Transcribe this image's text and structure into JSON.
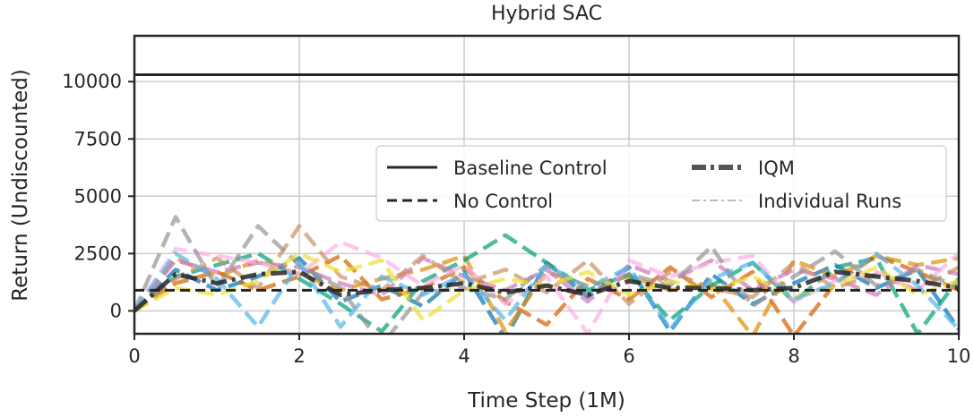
{
  "chart_data": {
    "type": "line",
    "title": "Hybrid SAC",
    "xlabel": "Time Step (1M)",
    "ylabel": "Return (Undiscounted)",
    "xlim": [
      0,
      10
    ],
    "ylim": [
      -1000,
      12000
    ],
    "xticks": [
      0,
      2,
      4,
      6,
      8,
      10
    ],
    "yticks": [
      0,
      2500,
      5000,
      7500,
      10000
    ],
    "xtick_labels": [
      "0",
      "2",
      "4",
      "6",
      "8",
      "10"
    ],
    "ytick_labels": [
      "0",
      "2500",
      "5000",
      "7500",
      "10000"
    ],
    "grid": true,
    "legend_position": "center-right",
    "legend": [
      {
        "label": "Baseline Control",
        "style": "solid",
        "color": "#262626"
      },
      {
        "label": "No Control",
        "style": "dashed",
        "color": "#262626"
      },
      {
        "label": "IQM",
        "style": "dashdot-thick",
        "color": "#555555"
      },
      {
        "label": "Individual Runs",
        "style": "dashdot-thin",
        "color": "#bbbbbb"
      }
    ],
    "baseline_control": 10300,
    "no_control": 900,
    "iqm": {
      "x": [
        0,
        0.5,
        1,
        1.5,
        2,
        2.5,
        3,
        3.5,
        4,
        4.5,
        5,
        5.5,
        6,
        6.5,
        7,
        7.5,
        8,
        8.5,
        9,
        9.5,
        10
      ],
      "y": [
        0,
        1600,
        1200,
        1600,
        1700,
        700,
        900,
        1000,
        1200,
        800,
        1100,
        700,
        1300,
        1000,
        1000,
        900,
        1000,
        1700,
        1500,
        1300,
        1000
      ]
    },
    "individual_runs": [
      {
        "color": "#0173b2",
        "x": [
          0,
          0.5,
          1,
          1.5,
          2,
          2.5,
          3,
          3.5,
          4,
          4.5,
          5,
          5.5,
          6,
          6.5,
          7,
          7.5,
          8,
          8.5,
          9,
          9.5,
          10
        ],
        "y": [
          0,
          1800,
          900,
          1500,
          2300,
          400,
          1100,
          200,
          1700,
          -1200,
          2100,
          600,
          1900,
          -900,
          1600,
          300,
          1200,
          2000,
          1000,
          1800,
          -800
        ]
      },
      {
        "color": "#de8f05",
        "x": [
          0,
          0.5,
          1,
          1.5,
          2,
          2.5,
          3,
          3.5,
          4,
          4.5,
          5,
          5.5,
          6,
          6.5,
          7,
          7.5,
          8,
          8.5,
          9,
          9.5,
          10
        ],
        "y": [
          0,
          2300,
          1500,
          2200,
          1600,
          900,
          1400,
          1800,
          2400,
          -900,
          1700,
          1100,
          1500,
          900,
          1200,
          -1100,
          2200,
          1500,
          2400,
          2000,
          2300
        ]
      },
      {
        "color": "#029e73",
        "x": [
          0,
          0.5,
          1,
          1.5,
          2,
          2.5,
          3,
          3.5,
          4,
          4.5,
          5,
          5.5,
          6,
          6.5,
          7,
          7.5,
          8,
          8.5,
          9,
          9.5,
          10
        ],
        "y": [
          0,
          1500,
          2000,
          2500,
          1400,
          300,
          -900,
          1300,
          2200,
          3300,
          2100,
          900,
          1600,
          -400,
          1100,
          2100,
          400,
          1900,
          2300,
          -1000,
          1400
        ]
      },
      {
        "color": "#d55e00",
        "x": [
          0,
          0.5,
          1,
          1.5,
          2,
          2.5,
          3,
          3.5,
          4,
          4.5,
          5,
          5.5,
          6,
          6.5,
          7,
          7.5,
          8,
          8.5,
          9,
          9.5,
          10
        ],
        "y": [
          0,
          1200,
          1700,
          900,
          1500,
          2400,
          500,
          1000,
          1900,
          400,
          -600,
          1400,
          500,
          1900,
          600,
          1700,
          -1100,
          1200,
          2400,
          1700,
          900
        ]
      },
      {
        "color": "#cc78bc",
        "x": [
          0,
          0.5,
          1,
          1.5,
          2,
          2.5,
          3,
          3.5,
          4,
          4.5,
          5,
          5.5,
          6,
          6.5,
          7,
          7.5,
          8,
          8.5,
          9,
          9.5,
          10
        ],
        "y": [
          0,
          2200,
          1700,
          2100,
          1900,
          1200,
          700,
          2300,
          1500,
          900,
          1800,
          400,
          2000,
          1300,
          2200,
          900,
          1800,
          1400,
          700,
          2000,
          1600
        ]
      },
      {
        "color": "#ca9161",
        "x": [
          0,
          0.5,
          1,
          1.5,
          2,
          2.5,
          3,
          3.5,
          4,
          4.5,
          5,
          5.5,
          6,
          6.5,
          7,
          7.5,
          8,
          8.5,
          9,
          9.5,
          10
        ],
        "y": [
          0,
          1400,
          2300,
          1000,
          3700,
          1500,
          900,
          2400,
          1200,
          1800,
          800,
          2200,
          300,
          1700,
          1000,
          600,
          2100,
          1000,
          1600,
          900,
          1900
        ]
      },
      {
        "color": "#fbafe4",
        "x": [
          0,
          0.5,
          1,
          1.5,
          2,
          2.5,
          3,
          3.5,
          4,
          4.5,
          5,
          5.5,
          6,
          6.5,
          7,
          7.5,
          8,
          8.5,
          9,
          9.5,
          10
        ],
        "y": [
          0,
          2700,
          2400,
          2100,
          1600,
          3000,
          2300,
          1100,
          2000,
          300,
          1500,
          -1000,
          2200,
          1500,
          2100,
          2400,
          400,
          1300,
          1700,
          900,
          2500
        ]
      },
      {
        "color": "#949494",
        "x": [
          0,
          0.5,
          1,
          1.5,
          2,
          2.5,
          3,
          3.5,
          4,
          4.5,
          5,
          5.5,
          6,
          6.5,
          7,
          7.5,
          8,
          8.5,
          9,
          9.5,
          10
        ],
        "y": [
          0,
          4100,
          1000,
          3700,
          2000,
          1000,
          -1500,
          800,
          1000,
          500,
          2000,
          700,
          1600,
          1100,
          2800,
          200,
          1500,
          2600,
          1100,
          1800,
          1000
        ]
      },
      {
        "color": "#ece133",
        "x": [
          0,
          0.5,
          1,
          1.5,
          2,
          2.5,
          3,
          3.5,
          4,
          4.5,
          5,
          5.5,
          6,
          6.5,
          7,
          7.5,
          8,
          8.5,
          9,
          9.5,
          10
        ],
        "y": [
          0,
          1000,
          700,
          1300,
          2500,
          1700,
          2200,
          -400,
          900,
          1400,
          1100,
          1700,
          700,
          1300,
          900,
          1500,
          600,
          1100,
          1900,
          700,
          1300
        ]
      },
      {
        "color": "#56b4e9",
        "x": [
          0,
          0.5,
          1,
          1.5,
          2,
          2.5,
          3,
          3.5,
          4,
          4.5,
          5,
          5.5,
          6,
          6.5,
          7,
          7.5,
          8,
          8.5,
          9,
          9.5,
          10
        ],
        "y": [
          0,
          2500,
          1400,
          -700,
          2100,
          -700,
          1500,
          700,
          1600,
          -400,
          2000,
          1000,
          1900,
          -800,
          1400,
          2100,
          500,
          1200,
          2500,
          1100,
          -800
        ]
      }
    ]
  }
}
